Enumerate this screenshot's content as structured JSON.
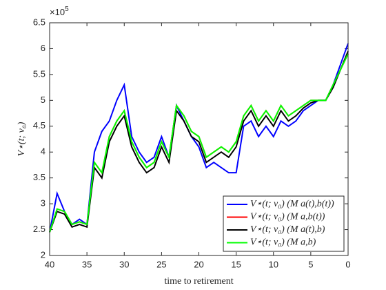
{
  "chart_data": {
    "type": "line",
    "xlabel": "time to retirement",
    "ylabel": "V⋆(t; v₀)",
    "y_multiplier": {
      "base": "×10",
      "exponent": "5"
    },
    "x": [
      40,
      39,
      38,
      37,
      36,
      35,
      34,
      33,
      32,
      31,
      30,
      29,
      28,
      27,
      26,
      25,
      24,
      23,
      22,
      21,
      20,
      19,
      18,
      17,
      16,
      15,
      14,
      13,
      12,
      11,
      10,
      9,
      8,
      7,
      6,
      5,
      4,
      3,
      2,
      1,
      0
    ],
    "series": [
      {
        "name": "V⋆(t; v₀)  (M a(t),b(t))",
        "color": "#0000ff",
        "values": [
          2.45,
          3.2,
          2.85,
          2.6,
          2.7,
          2.6,
          4.0,
          4.4,
          4.6,
          5.0,
          5.3,
          4.3,
          4.0,
          3.8,
          3.9,
          4.3,
          3.9,
          4.9,
          4.6,
          4.3,
          4.1,
          3.7,
          3.8,
          3.7,
          3.6,
          3.6,
          4.5,
          4.6,
          4.3,
          4.5,
          4.3,
          4.6,
          4.5,
          4.6,
          4.8,
          4.9,
          5.0,
          5.0,
          5.3,
          5.7,
          6.1
        ]
      },
      {
        "name": "V⋆(t; v₀)  (M a,b(t))",
        "color": "#ff0000",
        "values": [
          2.45,
          2.9,
          2.85,
          2.6,
          2.65,
          2.6,
          3.8,
          3.6,
          4.3,
          4.6,
          4.8,
          4.2,
          3.9,
          3.7,
          3.8,
          4.2,
          3.9,
          4.9,
          4.7,
          4.4,
          4.3,
          3.9,
          4.0,
          4.1,
          4.0,
          4.2,
          4.7,
          4.9,
          4.6,
          4.8,
          4.6,
          4.9,
          4.7,
          4.8,
          4.9,
          5.0,
          5.0,
          5.0,
          5.3,
          5.6,
          5.9
        ]
      },
      {
        "name": "V⋆(t; v₀)  (M a(t),b)",
        "color": "#000000",
        "values": [
          2.45,
          2.85,
          2.8,
          2.55,
          2.6,
          2.55,
          3.7,
          3.5,
          4.2,
          4.5,
          4.7,
          4.1,
          3.8,
          3.6,
          3.7,
          4.1,
          3.8,
          4.8,
          4.6,
          4.3,
          4.2,
          3.8,
          3.9,
          4.0,
          3.9,
          4.1,
          4.6,
          4.8,
          4.5,
          4.7,
          4.5,
          4.8,
          4.6,
          4.7,
          4.85,
          4.95,
          5.0,
          5.0,
          5.25,
          5.6,
          5.95
        ]
      },
      {
        "name": "V⋆(t; v₀)  (M a,b)",
        "color": "#00ff00",
        "values": [
          2.45,
          2.9,
          2.85,
          2.6,
          2.65,
          2.6,
          3.8,
          3.6,
          4.3,
          4.6,
          4.8,
          4.2,
          3.9,
          3.7,
          3.8,
          4.2,
          3.9,
          4.9,
          4.7,
          4.4,
          4.3,
          3.9,
          4.0,
          4.1,
          4.0,
          4.2,
          4.7,
          4.9,
          4.6,
          4.8,
          4.6,
          4.9,
          4.7,
          4.8,
          4.9,
          5.0,
          5.0,
          5.0,
          5.3,
          5.6,
          5.9
        ]
      }
    ],
    "xlim": [
      40,
      0
    ],
    "xticks": [
      40,
      35,
      30,
      25,
      20,
      15,
      10,
      5,
      0
    ],
    "ylim": [
      2,
      6.5
    ],
    "yticks": [
      2,
      2.5,
      3,
      3.5,
      4,
      4.5,
      5,
      5.5,
      6,
      6.5
    ],
    "grid": false,
    "legend": "lower right"
  }
}
